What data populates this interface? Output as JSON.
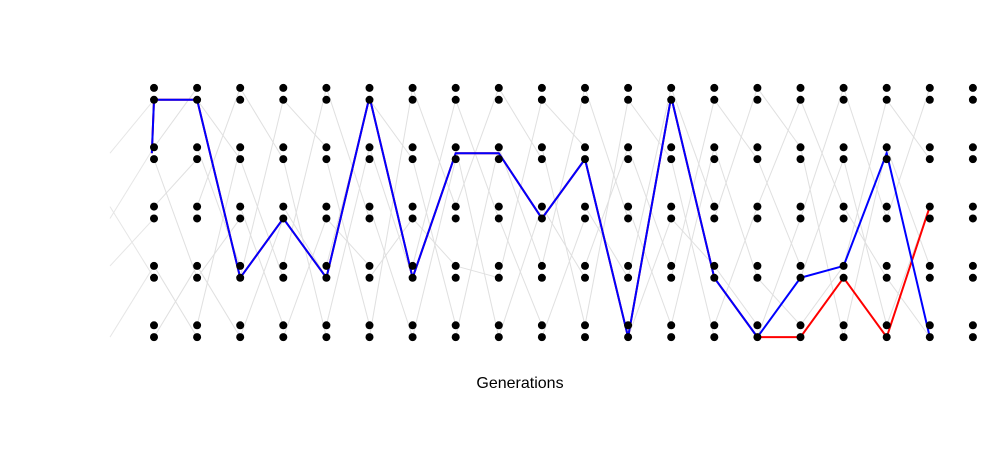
{
  "chart_data": {
    "type": "line",
    "title": "",
    "xlabel": "Generations",
    "ylabel": "",
    "grid": false,
    "legend": "none",
    "generations": [
      1,
      2,
      3,
      4,
      5,
      6,
      7,
      8,
      9,
      10,
      11,
      12,
      13,
      14,
      15,
      16,
      17,
      18,
      19,
      20
    ],
    "node_levels": [
      1,
      1.2,
      2,
      2.2,
      3,
      3.2,
      4,
      4.2,
      5,
      5.2
    ],
    "ylim": [
      0.8,
      5.3
    ],
    "background_links": [
      [
        [
          0,
          4.2
        ],
        [
          1,
          5.2
        ]
      ],
      [
        [
          0,
          3.2
        ],
        [
          1,
          4
        ]
      ],
      [
        [
          0,
          2.2
        ],
        [
          1,
          1
        ]
      ],
      [
        [
          0,
          1
        ],
        [
          1,
          2.2
        ]
      ],
      [
        [
          0,
          4
        ],
        [
          1,
          2
        ]
      ],
      [
        [
          1,
          5
        ],
        [
          2,
          4
        ]
      ],
      [
        [
          1,
          4.2
        ],
        [
          2,
          2.2
        ]
      ],
      [
        [
          1,
          3.2
        ],
        [
          2,
          5.2
        ]
      ],
      [
        [
          1,
          2
        ],
        [
          2,
          3
        ]
      ],
      [
        [
          1,
          1.2
        ],
        [
          2,
          4.2
        ]
      ],
      [
        [
          1,
          2.2
        ],
        [
          2,
          1
        ]
      ],
      [
        [
          2,
          5.2
        ],
        [
          3,
          4
        ]
      ],
      [
        [
          2,
          3.2
        ],
        [
          3,
          1.2
        ]
      ],
      [
        [
          2,
          1
        ],
        [
          3,
          3
        ]
      ],
      [
        [
          2,
          4
        ],
        [
          3,
          2
        ]
      ],
      [
        [
          2,
          2
        ],
        [
          3,
          5
        ]
      ],
      [
        [
          3,
          5
        ],
        [
          4,
          4.2
        ]
      ],
      [
        [
          3,
          4
        ],
        [
          4,
          1
        ]
      ],
      [
        [
          3,
          2.2
        ],
        [
          4,
          5.2
        ]
      ],
      [
        [
          3,
          1
        ],
        [
          4,
          3
        ]
      ],
      [
        [
          3,
          3.2
        ],
        [
          4,
          2
        ]
      ],
      [
        [
          4,
          5.2
        ],
        [
          5,
          3
        ]
      ],
      [
        [
          4,
          4
        ],
        [
          5,
          1.2
        ]
      ],
      [
        [
          4,
          1.2
        ],
        [
          5,
          4.2
        ]
      ],
      [
        [
          4,
          3
        ],
        [
          5,
          2.2
        ]
      ],
      [
        [
          4,
          2.2
        ],
        [
          5,
          5
        ]
      ],
      [
        [
          5,
          5
        ],
        [
          6,
          4
        ]
      ],
      [
        [
          5,
          4.2
        ],
        [
          6,
          2
        ]
      ],
      [
        [
          5,
          3.2
        ],
        [
          6,
          1
        ]
      ],
      [
        [
          5,
          1
        ],
        [
          6,
          5.2
        ]
      ],
      [
        [
          5,
          2
        ],
        [
          6,
          3
        ]
      ],
      [
        [
          6,
          5.2
        ],
        [
          7,
          3.2
        ]
      ],
      [
        [
          6,
          4
        ],
        [
          7,
          1.2
        ]
      ],
      [
        [
          6,
          2.2
        ],
        [
          7,
          5
        ]
      ],
      [
        [
          6,
          1
        ],
        [
          7,
          4
        ]
      ],
      [
        [
          6,
          3
        ],
        [
          7,
          2.2
        ]
      ],
      [
        [
          7,
          5
        ],
        [
          8,
          3
        ]
      ],
      [
        [
          7,
          4.2
        ],
        [
          8,
          1
        ]
      ],
      [
        [
          7,
          3.2
        ],
        [
          8,
          5.2
        ]
      ],
      [
        [
          7,
          1
        ],
        [
          8,
          4.2
        ]
      ],
      [
        [
          7,
          2.2
        ],
        [
          8,
          2
        ]
      ],
      [
        [
          8,
          5.2
        ],
        [
          9,
          4
        ]
      ],
      [
        [
          8,
          3
        ],
        [
          9,
          1.2
        ]
      ],
      [
        [
          8,
          2
        ],
        [
          9,
          5
        ]
      ],
      [
        [
          8,
          1
        ],
        [
          9,
          3.2
        ]
      ],
      [
        [
          8,
          4.2
        ],
        [
          9,
          2.2
        ]
      ],
      [
        [
          9,
          5
        ],
        [
          10,
          4.2
        ]
      ],
      [
        [
          9,
          3.2
        ],
        [
          10,
          2
        ]
      ],
      [
        [
          9,
          2.2
        ],
        [
          10,
          5.2
        ]
      ],
      [
        [
          9,
          1
        ],
        [
          10,
          3
        ]
      ],
      [
        [
          9,
          4.2
        ],
        [
          10,
          1.2
        ]
      ],
      [
        [
          10,
          5.2
        ],
        [
          11,
          3
        ]
      ],
      [
        [
          10,
          4
        ],
        [
          11,
          1
        ]
      ],
      [
        [
          10,
          2.2
        ],
        [
          11,
          4.2
        ]
      ],
      [
        [
          10,
          1.2
        ],
        [
          11,
          5
        ]
      ],
      [
        [
          10,
          3.2
        ],
        [
          11,
          2
        ]
      ],
      [
        [
          11,
          5
        ],
        [
          12,
          4
        ]
      ],
      [
        [
          11,
          3.2
        ],
        [
          12,
          1.2
        ]
      ],
      [
        [
          11,
          2
        ],
        [
          12,
          5.2
        ]
      ],
      [
        [
          11,
          1
        ],
        [
          12,
          3
        ]
      ],
      [
        [
          11,
          4.2
        ],
        [
          12,
          2.2
        ]
      ],
      [
        [
          12,
          5.2
        ],
        [
          13,
          3.2
        ]
      ],
      [
        [
          12,
          4
        ],
        [
          13,
          1
        ]
      ],
      [
        [
          12,
          2
        ],
        [
          13,
          5
        ]
      ],
      [
        [
          12,
          1.2
        ],
        [
          13,
          4.2
        ]
      ],
      [
        [
          12,
          3
        ],
        [
          13,
          2.2
        ]
      ],
      [
        [
          13,
          5
        ],
        [
          14,
          4
        ]
      ],
      [
        [
          13,
          4.2
        ],
        [
          14,
          2
        ]
      ],
      [
        [
          13,
          3
        ],
        [
          14,
          5.2
        ]
      ],
      [
        [
          13,
          1.2
        ],
        [
          14,
          3.2
        ]
      ],
      [
        [
          13,
          2.2
        ],
        [
          14,
          1.2
        ]
      ],
      [
        [
          14,
          5.2
        ],
        [
          15,
          4.2
        ]
      ],
      [
        [
          14,
          4
        ],
        [
          15,
          2.2
        ]
      ],
      [
        [
          14,
          3.2
        ],
        [
          15,
          5
        ]
      ],
      [
        [
          14,
          1
        ],
        [
          15,
          3
        ]
      ],
      [
        [
          14,
          2
        ],
        [
          15,
          1.2
        ]
      ],
      [
        [
          15,
          5
        ],
        [
          16,
          3.2
        ]
      ],
      [
        [
          15,
          4.2
        ],
        [
          16,
          1
        ]
      ],
      [
        [
          15,
          3
        ],
        [
          16,
          5.2
        ]
      ],
      [
        [
          15,
          2
        ],
        [
          16,
          4
        ]
      ],
      [
        [
          15,
          1.2
        ],
        [
          16,
          2.2
        ]
      ],
      [
        [
          16,
          5.2
        ],
        [
          17,
          3
        ]
      ],
      [
        [
          16,
          4
        ],
        [
          17,
          1.2
        ]
      ],
      [
        [
          16,
          2.2
        ],
        [
          17,
          5
        ]
      ],
      [
        [
          16,
          1
        ],
        [
          17,
          4.2
        ]
      ],
      [
        [
          16,
          3.2
        ],
        [
          17,
          2
        ]
      ],
      [
        [
          17,
          5
        ],
        [
          18,
          4
        ]
      ],
      [
        [
          17,
          4.2
        ],
        [
          18,
          2.2
        ]
      ],
      [
        [
          17,
          3
        ],
        [
          18,
          5.2
        ]
      ],
      [
        [
          17,
          1.2
        ],
        [
          18,
          3.2
        ]
      ],
      [
        [
          17,
          2
        ],
        [
          18,
          1
        ]
      ]
    ],
    "series": [
      {
        "color": "#ff0000",
        "points": [
          [
            -0.05,
            4.1
          ],
          [
            0,
            5
          ],
          [
            1,
            5
          ],
          [
            2,
            2
          ],
          [
            3,
            3
          ],
          [
            4,
            2
          ],
          [
            5,
            5.05
          ],
          [
            6,
            2
          ],
          [
            7,
            4.1
          ],
          [
            8,
            4.1
          ],
          [
            9,
            3
          ],
          [
            10,
            4
          ],
          [
            11,
            1
          ],
          [
            12,
            5.05
          ],
          [
            13,
            2
          ],
          [
            14,
            1
          ],
          [
            15,
            1
          ],
          [
            16,
            2
          ],
          [
            17,
            1
          ],
          [
            18,
            3.2
          ]
        ]
      },
      {
        "color": "#0000ff",
        "points": [
          [
            -0.05,
            4.1
          ],
          [
            0,
            5
          ],
          [
            1,
            5
          ],
          [
            2,
            2
          ],
          [
            3,
            3
          ],
          [
            4,
            2
          ],
          [
            5,
            5.05
          ],
          [
            6,
            2
          ],
          [
            7,
            4.1
          ],
          [
            8,
            4.1
          ],
          [
            9,
            3
          ],
          [
            10,
            4
          ],
          [
            11,
            1
          ],
          [
            12,
            5.05
          ],
          [
            13,
            2
          ],
          [
            14,
            1
          ],
          [
            15,
            2
          ],
          [
            16,
            2.2
          ],
          [
            17,
            4.1
          ],
          [
            18,
            1
          ]
        ]
      }
    ]
  }
}
